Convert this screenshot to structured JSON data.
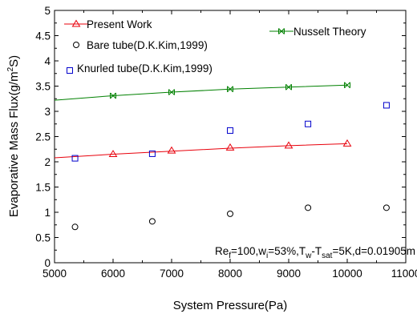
{
  "chart_data": {
    "type": "line",
    "xlabel": "System Pressure(Pa)",
    "ylabel_main": "Evaporative Mass Flux(g/m",
    "ylabel_sup": "2",
    "ylabel_tail": "S)",
    "xlim": [
      5000,
      11000
    ],
    "ylim": [
      0,
      5
    ],
    "xticks": [
      5000,
      6000,
      7000,
      8000,
      9000,
      10000,
      11000
    ],
    "yticks": [
      0,
      0.5,
      1,
      1.5,
      2,
      2.5,
      3,
      3.5,
      4,
      4.5,
      5
    ],
    "xtick_labels": [
      "5000",
      "6000",
      "7000",
      "8000",
      "9000",
      "10000",
      "11000"
    ],
    "ytick_labels": [
      "0",
      "0.5",
      "1",
      "1.5",
      "2",
      "2.5",
      "3",
      "3.5",
      "4",
      "4.5",
      "5"
    ],
    "series": [
      {
        "name": "Present Work",
        "marker": "triangle",
        "color": "#e8000b",
        "line": true,
        "line_x": [
          5000,
          6000,
          7000,
          8000,
          9000,
          10000
        ],
        "line_y": [
          2.08,
          2.15,
          2.21,
          2.27,
          2.32,
          2.36
        ],
        "x": [
          6000,
          7000,
          8000,
          9000,
          10000
        ],
        "y": [
          2.15,
          2.22,
          2.28,
          2.32,
          2.36
        ]
      },
      {
        "name": "Bare tube(D.K.Kim,1999)",
        "marker": "circle",
        "color": "#000000",
        "line": false,
        "x": [
          5350,
          6670,
          8000,
          9330,
          10670
        ],
        "y": [
          0.71,
          0.82,
          0.97,
          1.09,
          1.09
        ]
      },
      {
        "name": "Knurled tube(D.K.Kim,1999)",
        "marker": "square",
        "color": "#0000cc",
        "line": false,
        "x": [
          5350,
          6670,
          8000,
          9330,
          10670
        ],
        "y": [
          2.07,
          2.16,
          2.62,
          2.75,
          3.12
        ]
      },
      {
        "name": "Nusselt Theory",
        "marker": "x-bowtie",
        "color": "#008000",
        "line": true,
        "line_x": [
          5000,
          6000,
          7000,
          8000,
          9000,
          10000
        ],
        "line_y": [
          3.22,
          3.31,
          3.38,
          3.44,
          3.48,
          3.52
        ],
        "x": [
          6000,
          7000,
          8000,
          9000,
          10000
        ],
        "y": [
          3.31,
          3.38,
          3.44,
          3.48,
          3.52
        ]
      }
    ],
    "annotation": {
      "base1": "Re",
      "sub1": "f",
      "base2": "=100,w",
      "sub2": "i",
      "base3": "=53%,T",
      "sub3": "w",
      "base4": "-T",
      "sub4": "sat",
      "base5": "=5K,d=0.01905m"
    },
    "grid": false
  }
}
